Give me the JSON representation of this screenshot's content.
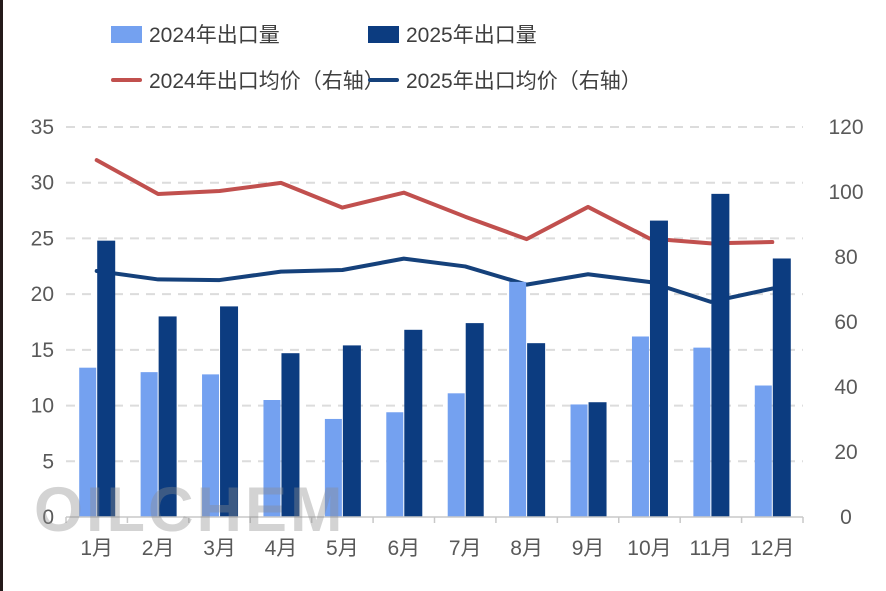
{
  "watermark": "OILCHEM",
  "chart_data": {
    "type": "bar+line",
    "title": "",
    "legend_position": "top",
    "grid": "horizontal-dashed",
    "categories": [
      "1月",
      "2月",
      "3月",
      "4月",
      "5月",
      "6月",
      "7月",
      "8月",
      "9月",
      "10月",
      "11月",
      "12月"
    ],
    "series": [
      {
        "name": "2024年出口量",
        "type": "bar",
        "axis": "left",
        "color": "#74A1F0",
        "values": [
          13.4,
          13.0,
          12.8,
          10.5,
          8.8,
          9.4,
          11.1,
          21.1,
          10.1,
          16.2,
          15.2,
          11.8
        ]
      },
      {
        "name": "2025年出口量",
        "type": "bar",
        "axis": "left",
        "color": "#0C3C80",
        "values": [
          24.8,
          18.0,
          18.9,
          14.7,
          15.4,
          16.8,
          17.4,
          15.6,
          10.3,
          26.6,
          29.0,
          23.2
        ]
      },
      {
        "name": "2024年出口均价（右轴）",
        "type": "line",
        "axis": "right",
        "color": "#C1504E",
        "values": [
          109.8,
          99.4,
          100.3,
          102.8,
          95.2,
          99.8,
          92.4,
          85.5,
          95.4,
          85.7,
          84.2,
          84.6
        ]
      },
      {
        "name": "2025年出口均价（右轴）",
        "type": "line",
        "axis": "right",
        "color": "#15417B",
        "values": [
          75.7,
          73.1,
          72.9,
          75.5,
          76.0,
          79.5,
          77.1,
          71.5,
          74.7,
          72.3,
          66.2,
          70.3
        ]
      }
    ],
    "left_axis": {
      "min": 0,
      "max": 35,
      "step": 5,
      "ticks": [
        0,
        5,
        10,
        15,
        20,
        25,
        30,
        35
      ]
    },
    "right_axis": {
      "min": 0,
      "max": 120,
      "step": 20,
      "ticks": [
        0,
        20,
        40,
        60,
        80,
        100,
        120
      ]
    },
    "colors": {
      "gridline": "#DCDCDC",
      "axis_line": "#C8C8C8",
      "tick_label": "#595959",
      "legend_text": "#3f3f3f"
    }
  }
}
